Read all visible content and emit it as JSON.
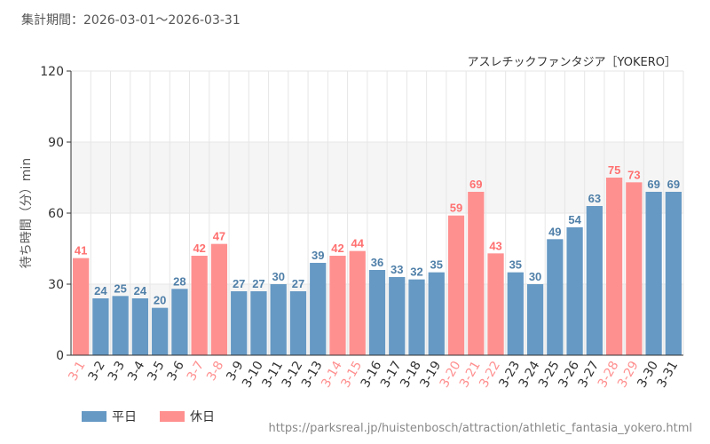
{
  "period_label": "集計期間：2026-03-01～2026-03-31",
  "source_url": "https://parksreal.jp/huistenbosch/attraction/athletic_fantasia_yokero.html",
  "colors": {
    "weekday": "#6699c4",
    "holiday": "#ff9090",
    "weekday_label": "#4f7fa8",
    "holiday_label": "#ff7070",
    "axis_text": "#333333",
    "grid": "#e6e6e6",
    "band": "#f5f5f5"
  },
  "legend": {
    "weekday": "平日",
    "holiday": "休日"
  },
  "chart_data": {
    "type": "bar",
    "title": "アスレチックファンタジア［YOKERO］",
    "xlabel": "",
    "ylabel": "待ち時間（分）min",
    "ylim": [
      0,
      120
    ],
    "yticks": [
      0,
      30,
      60,
      90,
      120
    ],
    "grid": true,
    "categories": [
      "3-1",
      "3-2",
      "3-3",
      "3-4",
      "3-5",
      "3-6",
      "3-7",
      "3-8",
      "3-9",
      "3-10",
      "3-11",
      "3-12",
      "3-13",
      "3-14",
      "3-15",
      "3-16",
      "3-17",
      "3-18",
      "3-19",
      "3-20",
      "3-21",
      "3-22",
      "3-23",
      "3-24",
      "3-25",
      "3-26",
      "3-27",
      "3-28",
      "3-29",
      "3-30",
      "3-31"
    ],
    "values": [
      41,
      24,
      25,
      24,
      20,
      28,
      42,
      47,
      27,
      27,
      30,
      27,
      39,
      42,
      44,
      36,
      33,
      32,
      35,
      59,
      69,
      43,
      35,
      30,
      49,
      54,
      63,
      75,
      73,
      69,
      69
    ],
    "day_type": [
      "holiday",
      "weekday",
      "weekday",
      "weekday",
      "weekday",
      "weekday",
      "holiday",
      "holiday",
      "weekday",
      "weekday",
      "weekday",
      "weekday",
      "weekday",
      "holiday",
      "holiday",
      "weekday",
      "weekday",
      "weekday",
      "weekday",
      "holiday",
      "holiday",
      "holiday",
      "weekday",
      "weekday",
      "weekday",
      "weekday",
      "weekday",
      "holiday",
      "holiday",
      "weekday",
      "weekday"
    ]
  }
}
